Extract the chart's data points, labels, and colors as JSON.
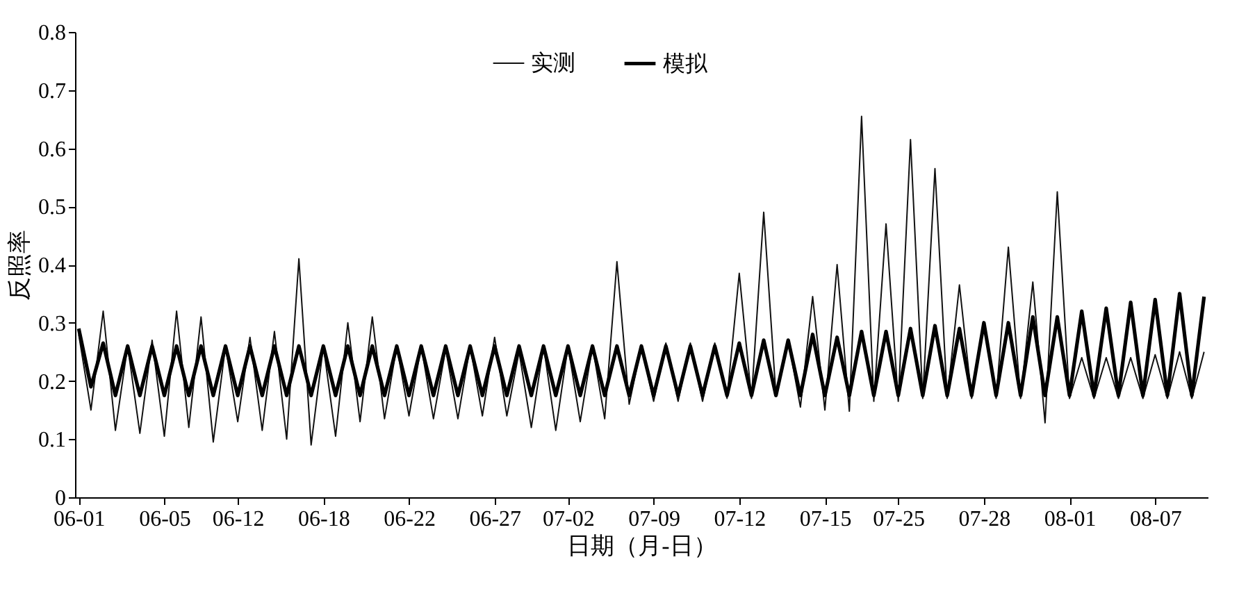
{
  "chart_data": {
    "type": "line",
    "xlabel": "日期（月-日）",
    "ylabel": "反照率",
    "categories": [
      "06-01",
      null,
      null,
      null,
      null,
      null,
      null,
      "06-05",
      null,
      null,
      null,
      null,
      null,
      "06-12",
      null,
      null,
      null,
      null,
      null,
      null,
      "06-18",
      null,
      null,
      null,
      null,
      null,
      null,
      "06-22",
      null,
      null,
      null,
      null,
      null,
      null,
      "06-27",
      null,
      null,
      null,
      null,
      null,
      "07-02",
      null,
      null,
      null,
      null,
      null,
      null,
      "07-09",
      null,
      null,
      null,
      null,
      null,
      null,
      "07-12",
      null,
      null,
      null,
      null,
      null,
      null,
      "07-15",
      null,
      null,
      null,
      null,
      null,
      "07-25",
      null,
      null,
      null,
      null,
      null,
      null,
      "07-28",
      null,
      null,
      null,
      null,
      null,
      null,
      "08-01",
      null,
      null,
      null,
      null,
      null,
      null,
      "08-07",
      null,
      null,
      null,
      null
    ],
    "series": [
      {
        "name": "实测",
        "color": "#111111",
        "values": [
          0.28,
          0.15,
          0.32,
          0.115,
          0.26,
          0.11,
          0.27,
          0.105,
          0.32,
          0.12,
          0.31,
          0.095,
          0.26,
          0.13,
          0.275,
          0.115,
          0.285,
          0.1,
          0.41,
          0.09,
          0.26,
          0.105,
          0.3,
          0.13,
          0.31,
          0.135,
          0.26,
          0.14,
          0.26,
          0.135,
          0.255,
          0.135,
          0.26,
          0.14,
          0.275,
          0.14,
          0.25,
          0.12,
          0.26,
          0.115,
          0.26,
          0.13,
          0.26,
          0.135,
          0.405,
          0.16,
          0.26,
          0.165,
          0.265,
          0.165,
          0.265,
          0.165,
          0.265,
          0.17,
          0.385,
          0.17,
          0.49,
          0.175,
          0.27,
          0.155,
          0.345,
          0.15,
          0.4,
          0.148,
          0.655,
          0.165,
          0.47,
          0.165,
          0.615,
          0.17,
          0.565,
          0.17,
          0.365,
          0.17,
          0.3,
          0.17,
          0.43,
          0.17,
          0.37,
          0.128,
          0.525,
          0.17,
          0.24,
          0.17,
          0.24,
          0.17,
          0.24,
          0.17,
          0.245,
          0.17,
          0.25,
          0.17,
          0.25
        ]
      },
      {
        "name": "模拟",
        "color": "#000000",
        "values": [
          0.29,
          0.19,
          0.265,
          0.175,
          0.26,
          0.175,
          0.26,
          0.175,
          0.26,
          0.175,
          0.26,
          0.175,
          0.26,
          0.175,
          0.26,
          0.175,
          0.26,
          0.175,
          0.26,
          0.175,
          0.26,
          0.175,
          0.26,
          0.175,
          0.26,
          0.175,
          0.26,
          0.175,
          0.26,
          0.175,
          0.26,
          0.175,
          0.26,
          0.175,
          0.26,
          0.175,
          0.26,
          0.175,
          0.26,
          0.175,
          0.26,
          0.175,
          0.26,
          0.175,
          0.26,
          0.175,
          0.26,
          0.175,
          0.26,
          0.175,
          0.26,
          0.175,
          0.26,
          0.175,
          0.265,
          0.175,
          0.27,
          0.175,
          0.27,
          0.175,
          0.28,
          0.175,
          0.275,
          0.175,
          0.285,
          0.175,
          0.285,
          0.175,
          0.29,
          0.175,
          0.295,
          0.175,
          0.29,
          0.175,
          0.3,
          0.175,
          0.3,
          0.175,
          0.31,
          0.175,
          0.31,
          0.175,
          0.32,
          0.175,
          0.325,
          0.175,
          0.335,
          0.175,
          0.34,
          0.175,
          0.35,
          0.175,
          0.345
        ]
      }
    ],
    "ylim": [
      0,
      0.8
    ],
    "yticks": [
      {
        "value": 0,
        "label": "0"
      },
      0.1,
      0.2,
      0.3,
      0.4,
      0.5,
      0.6,
      0.7,
      0.8
    ],
    "grid": false,
    "legend": "top",
    "marker": "none",
    "line_style": "solid"
  }
}
